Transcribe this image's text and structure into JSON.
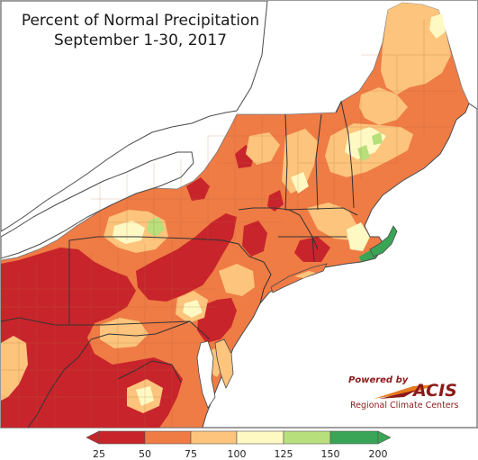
{
  "map": {
    "title_line1": "Percent of Normal Precipitation",
    "title_line2": "September 1-30, 2017"
  },
  "logo": {
    "powered_by": "Powered by",
    "name": "ACIS",
    "subtitle": "Regional Climate Centers"
  },
  "legend": {
    "ticks": [
      "25",
      "50",
      "75",
      "100",
      "125",
      "150",
      "200"
    ],
    "bins": [
      {
        "range": "25-50",
        "color": "#c8242b"
      },
      {
        "range": "50-75",
        "color": "#ef7b45"
      },
      {
        "range": "75-100",
        "color": "#fcc47c"
      },
      {
        "range": "100-125",
        "color": "#fef9c3"
      },
      {
        "range": "125-150",
        "color": "#b7df7c"
      },
      {
        "range": "150-200",
        "color": "#3aa556"
      }
    ]
  },
  "colors": {
    "water": "#ffffff",
    "very_dry": "#c8242b",
    "dry": "#ef7b45",
    "near_normal": "#fcc47c",
    "normal": "#fef9c3",
    "wet": "#b7df7c",
    "very_wet": "#3aa556"
  }
}
